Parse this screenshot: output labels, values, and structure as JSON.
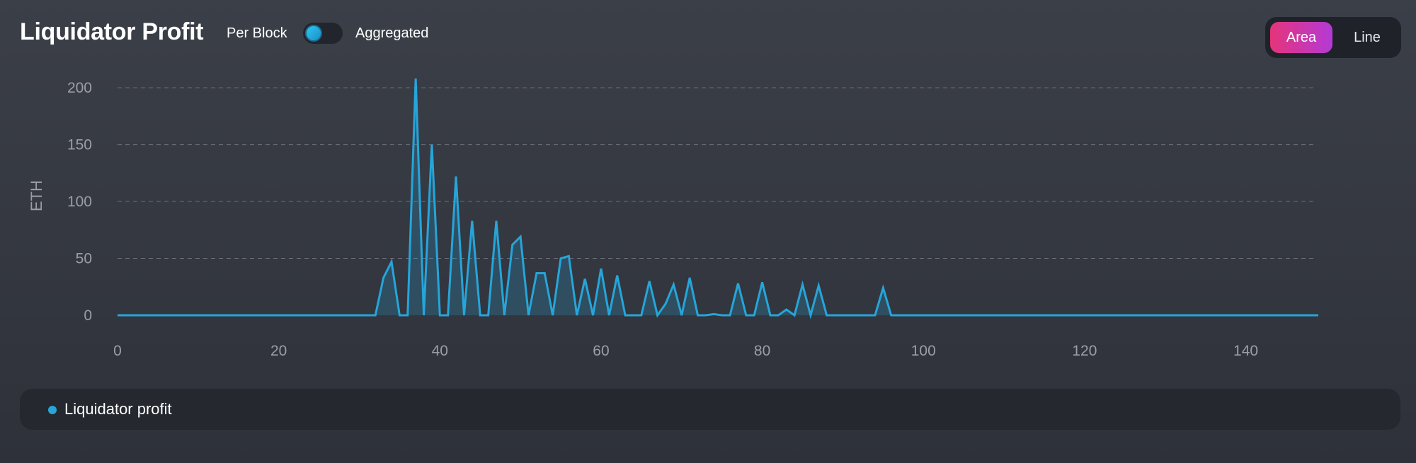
{
  "header": {
    "title": "Liquidator Profit",
    "toggle_left_label": "Per Block",
    "toggle_right_label": "Aggregated"
  },
  "view_switch": {
    "options": [
      "Area",
      "Line"
    ],
    "selected": "Area"
  },
  "colors": {
    "series": "#26a5d9",
    "accent_start": "#e5347a",
    "accent_end": "#b43ad6",
    "background": "#363a42"
  },
  "chart_data": {
    "type": "area",
    "ylabel": "ETH",
    "xlabel": "",
    "xlim": [
      0,
      149
    ],
    "ylim": [
      0,
      210
    ],
    "x_ticks": [
      0,
      20,
      40,
      60,
      80,
      100,
      120,
      140
    ],
    "y_ticks": [
      0,
      50,
      100,
      150,
      200
    ],
    "grid": "horizontal dashed",
    "legend": "bottom",
    "series": [
      {
        "name": "Liquidator profit",
        "x": [
          0,
          1,
          2,
          3,
          4,
          5,
          6,
          7,
          8,
          9,
          10,
          11,
          12,
          13,
          14,
          15,
          16,
          17,
          18,
          19,
          20,
          21,
          22,
          23,
          24,
          25,
          26,
          27,
          28,
          29,
          30,
          31,
          32,
          33,
          34,
          35,
          36,
          37,
          38,
          39,
          40,
          41,
          42,
          43,
          44,
          45,
          46,
          47,
          48,
          49,
          50,
          51,
          52,
          53,
          54,
          55,
          56,
          57,
          58,
          59,
          60,
          61,
          62,
          63,
          64,
          65,
          66,
          67,
          68,
          69,
          70,
          71,
          72,
          73,
          74,
          75,
          76,
          77,
          78,
          79,
          80,
          81,
          82,
          83,
          84,
          85,
          86,
          87,
          88,
          89,
          90,
          91,
          92,
          93,
          94,
          95,
          96,
          97,
          98,
          99,
          100,
          101,
          102,
          103,
          104,
          105,
          106,
          107,
          108,
          109,
          110,
          111,
          112,
          113,
          114,
          115,
          116,
          117,
          118,
          119,
          120,
          121,
          122,
          123,
          124,
          125,
          126,
          127,
          128,
          129,
          130,
          131,
          132,
          133,
          134,
          135,
          136,
          137,
          138,
          139,
          140,
          141,
          142,
          143,
          144,
          145,
          146,
          147,
          148,
          149
        ],
        "values": [
          0,
          0,
          0,
          0,
          0,
          0,
          0,
          0,
          0,
          0,
          0,
          0,
          0,
          0,
          0,
          0,
          0,
          0,
          0,
          0,
          0,
          0,
          0,
          0,
          0,
          0,
          0,
          0,
          0,
          0,
          0,
          0,
          0,
          33,
          47,
          0,
          0,
          208,
          0,
          150,
          0,
          0,
          122,
          0,
          83,
          0,
          0,
          83,
          0,
          62,
          69,
          0,
          37,
          37,
          0,
          50,
          52,
          0,
          32,
          0,
          41,
          0,
          35,
          0,
          0,
          0,
          30,
          0,
          10,
          27,
          0,
          33,
          0,
          0,
          1,
          0,
          0,
          28,
          0,
          0,
          29,
          0,
          0,
          5,
          0,
          27,
          0,
          26,
          0,
          0,
          0,
          0,
          0,
          0,
          0,
          24,
          0,
          0,
          0,
          0,
          0,
          0,
          0,
          0,
          0,
          0,
          0,
          0,
          0,
          0,
          0,
          0,
          0,
          0,
          0,
          0,
          0,
          0,
          0,
          0,
          0,
          0,
          0,
          0,
          0,
          0,
          0,
          0,
          0,
          0,
          0,
          0,
          0,
          0,
          0,
          0,
          0,
          0,
          0,
          0,
          0,
          0,
          0,
          0,
          0,
          0,
          0,
          0,
          0,
          0
        ]
      }
    ]
  }
}
